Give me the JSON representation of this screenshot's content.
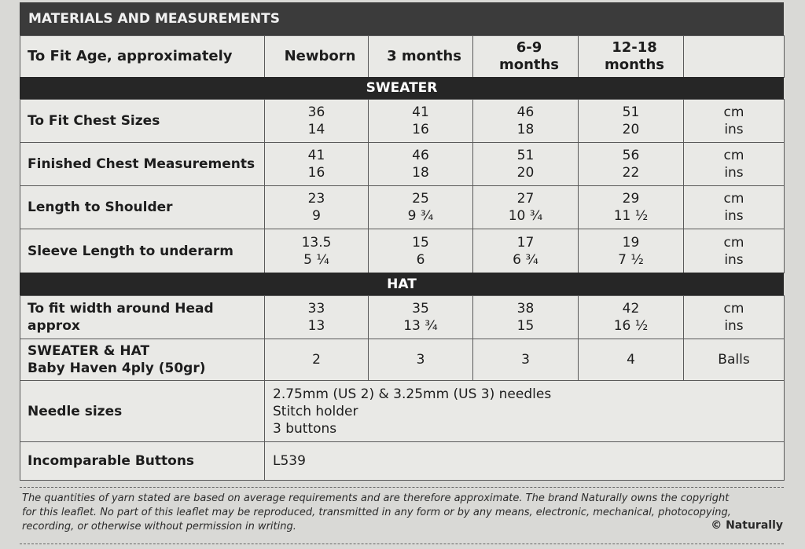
{
  "header": {
    "title": "MATERIALS AND MEASUREMENTS"
  },
  "table": {
    "columns": [
      [
        "To Fit Age, approximately"
      ],
      [
        "Newborn"
      ],
      [
        "3 months"
      ],
      [
        "6-9",
        "months"
      ],
      [
        "12-18",
        "months"
      ]
    ],
    "sections": [
      {
        "title": "SWEATER",
        "rows": [
          {
            "label": [
              "To Fit Chest Sizes"
            ],
            "cells": [
              [
                "36",
                "14"
              ],
              [
                "41",
                "16"
              ],
              [
                "46",
                "18"
              ],
              [
                "51",
                "20"
              ]
            ],
            "units": [
              "cm",
              "ins"
            ]
          },
          {
            "label": [
              "Finished Chest Measurements"
            ],
            "cells": [
              [
                "41",
                "16"
              ],
              [
                "46",
                "18"
              ],
              [
                "51",
                "20"
              ],
              [
                "56",
                "22"
              ]
            ],
            "units": [
              "cm",
              "ins"
            ]
          },
          {
            "label": [
              "Length to Shoulder"
            ],
            "cells": [
              [
                "23",
                "9"
              ],
              [
                "25",
                "9 ¾"
              ],
              [
                "27",
                "10 ¾"
              ],
              [
                "29",
                "11 ½"
              ]
            ],
            "units": [
              "cm",
              "ins"
            ]
          },
          {
            "label": [
              "Sleeve Length to underarm"
            ],
            "cells": [
              [
                "13.5",
                "5 ¼"
              ],
              [
                "15",
                "6"
              ],
              [
                "17",
                "6 ¾"
              ],
              [
                "19",
                "7 ½"
              ]
            ],
            "units": [
              "cm",
              "ins"
            ]
          }
        ]
      },
      {
        "title": "HAT",
        "rows": [
          {
            "label": [
              "To fit width around Head",
              "approx"
            ],
            "cells": [
              [
                "33",
                "13"
              ],
              [
                "35",
                "13 ¾"
              ],
              [
                "38",
                "15"
              ],
              [
                "42",
                "16 ½"
              ]
            ],
            "units": [
              "cm",
              "ins"
            ]
          },
          {
            "label": [
              "SWEATER & HAT",
              "Baby Haven 4ply (50gr)"
            ],
            "cells": [
              [
                "2"
              ],
              [
                "3"
              ],
              [
                "3"
              ],
              [
                "4"
              ]
            ],
            "units": [
              "Balls"
            ]
          }
        ]
      }
    ],
    "needles": {
      "label": [
        "Needle sizes"
      ],
      "lines": [
        "2.75mm (US 2) & 3.25mm (US 3) needles",
        "Stitch holder",
        "3 buttons"
      ]
    },
    "buttons": {
      "label": [
        "Incomparable Buttons"
      ],
      "lines": [
        "L539"
      ]
    }
  },
  "footer": {
    "lines": [
      "The quantities of yarn stated are based on average requirements and are therefore approximate. The brand Naturally owns the copyright",
      "for this leaflet. No part of this leaflet may be reproduced, transmitted in any form or by any means, electronic, mechanical, photocopying,",
      "recording, or otherwise without permission in writing."
    ],
    "copyright": "© Naturally"
  }
}
